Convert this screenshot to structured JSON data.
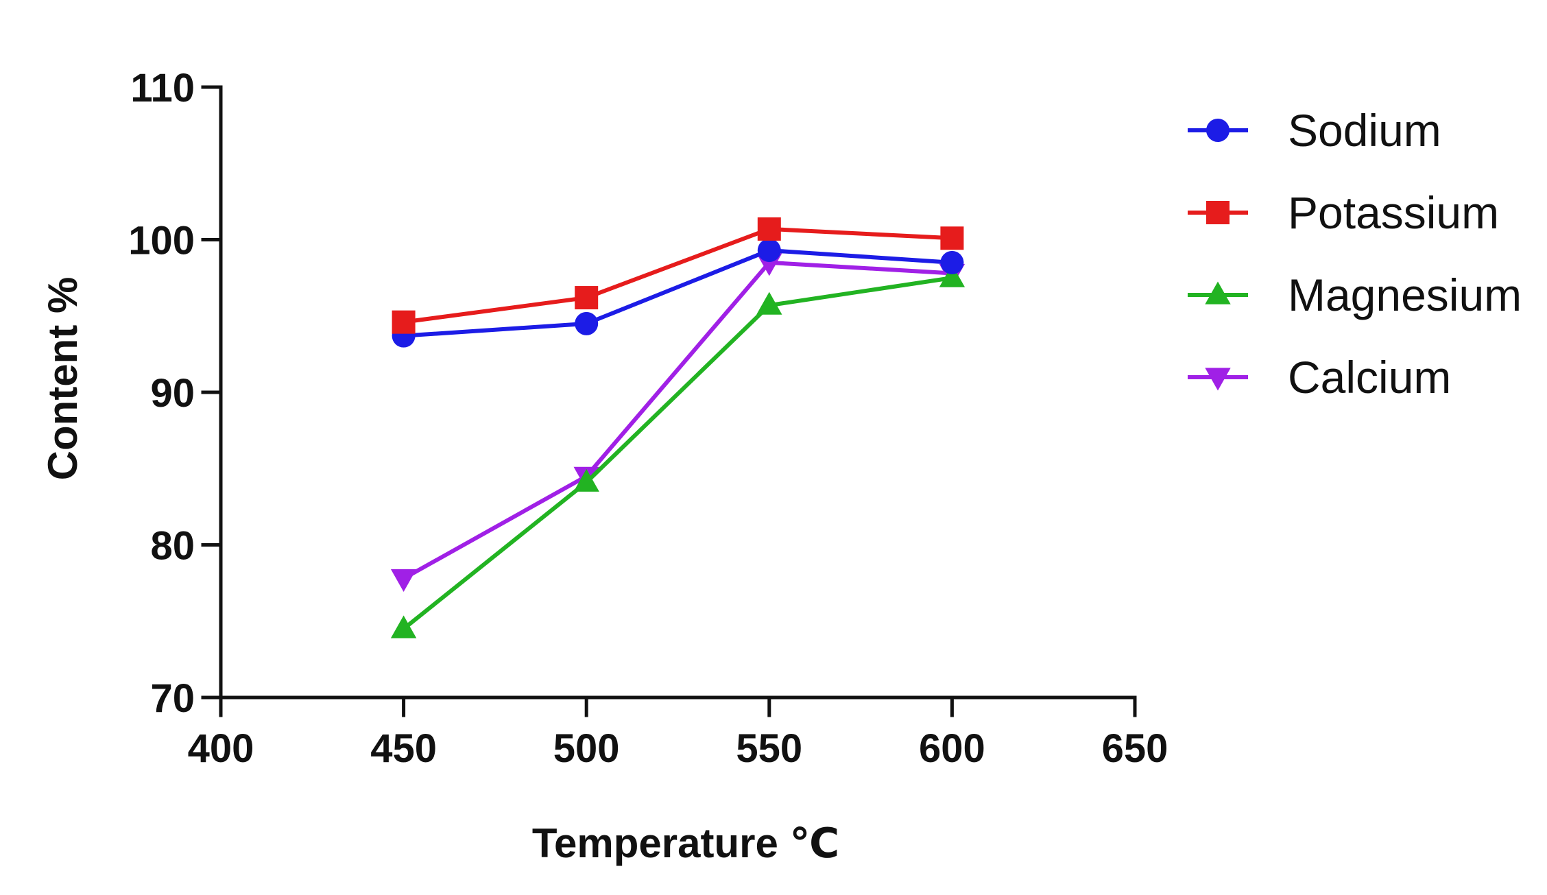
{
  "chart_data": {
    "type": "line",
    "title": "",
    "xlabel": "Temperature ℃",
    "ylabel": "Content %",
    "xlim": [
      400,
      650
    ],
    "ylim": [
      70,
      110
    ],
    "xticks": [
      400,
      450,
      500,
      550,
      600,
      650
    ],
    "yticks": [
      70,
      80,
      90,
      100,
      110
    ],
    "grid": false,
    "legend_position": "right",
    "x": [
      450,
      500,
      550,
      600
    ],
    "series": [
      {
        "name": "Sodium",
        "marker": "circle",
        "color": "#1c1ce6",
        "values": [
          93.7,
          94.5,
          99.3,
          98.5
        ]
      },
      {
        "name": "Potassium",
        "marker": "square",
        "color": "#e61c1c",
        "values": [
          94.6,
          96.2,
          100.7,
          100.1
        ]
      },
      {
        "name": "Magnesium",
        "marker": "triangle-up",
        "color": "#22b322",
        "values": [
          74.5,
          84.1,
          95.7,
          97.5
        ]
      },
      {
        "name": "Calcium",
        "marker": "triangle-down",
        "color": "#a020e6",
        "values": [
          77.8,
          84.5,
          98.5,
          97.8
        ]
      }
    ]
  }
}
